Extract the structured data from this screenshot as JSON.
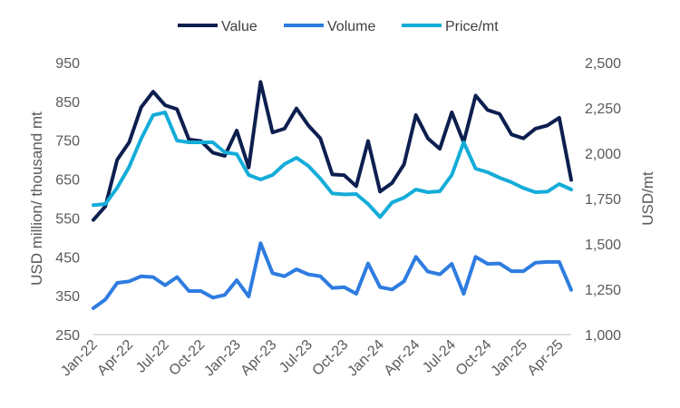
{
  "chart_data": {
    "type": "line",
    "title": "",
    "legend": {
      "placement": "top-center",
      "entries": [
        "Value",
        "Volume",
        "Price/mt"
      ]
    },
    "y_left": {
      "label": "USD million/ thousand mt",
      "min": 250,
      "max": 950,
      "ticks": [
        "250",
        "350",
        "450",
        "550",
        "650",
        "750",
        "850",
        "950"
      ]
    },
    "y_right": {
      "label": "USD/mt",
      "min": 1000,
      "max": 2500,
      "ticks": [
        "1,000",
        "1,250",
        "1,500",
        "1,750",
        "2,000",
        "2,250",
        "2,500"
      ]
    },
    "x_tick_labels": [
      "Jan-22",
      "Apr-22",
      "Jul-22",
      "Oct-22",
      "Jan-23",
      "Apr-23",
      "Jul-23",
      "Oct-23",
      "Jan-24",
      "Apr-24",
      "Jul-24",
      "Oct-24",
      "Jan-25",
      "Apr-25"
    ],
    "x_tick_step_months": 3,
    "grid": false,
    "series": [
      {
        "name": "Value",
        "axis": "left",
        "color": "#0d1f4f",
        "values": [
          545,
          580,
          700,
          745,
          835,
          875,
          840,
          830,
          752,
          748,
          718,
          710,
          775,
          680,
          900,
          770,
          780,
          832,
          788,
          755,
          662,
          660,
          632,
          748,
          618,
          640,
          688,
          815,
          755,
          728,
          822,
          745,
          865,
          828,
          818,
          765,
          755,
          780,
          788,
          808,
          648
        ]
      },
      {
        "name": "Volume",
        "axis": "left",
        "color": "#2e7ce0",
        "values": [
          318,
          340,
          383,
          387,
          400,
          398,
          377,
          398,
          362,
          362,
          345,
          352,
          390,
          348,
          485,
          408,
          400,
          418,
          405,
          400,
          370,
          372,
          355,
          433,
          372,
          366,
          387,
          450,
          412,
          405,
          432,
          355,
          450,
          432,
          433,
          413,
          413,
          435,
          437,
          437,
          365
        ]
      },
      {
        "name": "Price/mt",
        "axis": "right",
        "color": "#14acd9",
        "values": [
          1714,
          1720,
          1810,
          1925,
          2080,
          2210,
          2225,
          2070,
          2060,
          2060,
          2060,
          2005,
          1995,
          1880,
          1855,
          1880,
          1940,
          1975,
          1930,
          1860,
          1778,
          1773,
          1775,
          1720,
          1648,
          1728,
          1755,
          1800,
          1785,
          1790,
          1880,
          2060,
          1915,
          1895,
          1865,
          1840,
          1808,
          1785,
          1788,
          1830,
          1800
        ]
      }
    ]
  }
}
